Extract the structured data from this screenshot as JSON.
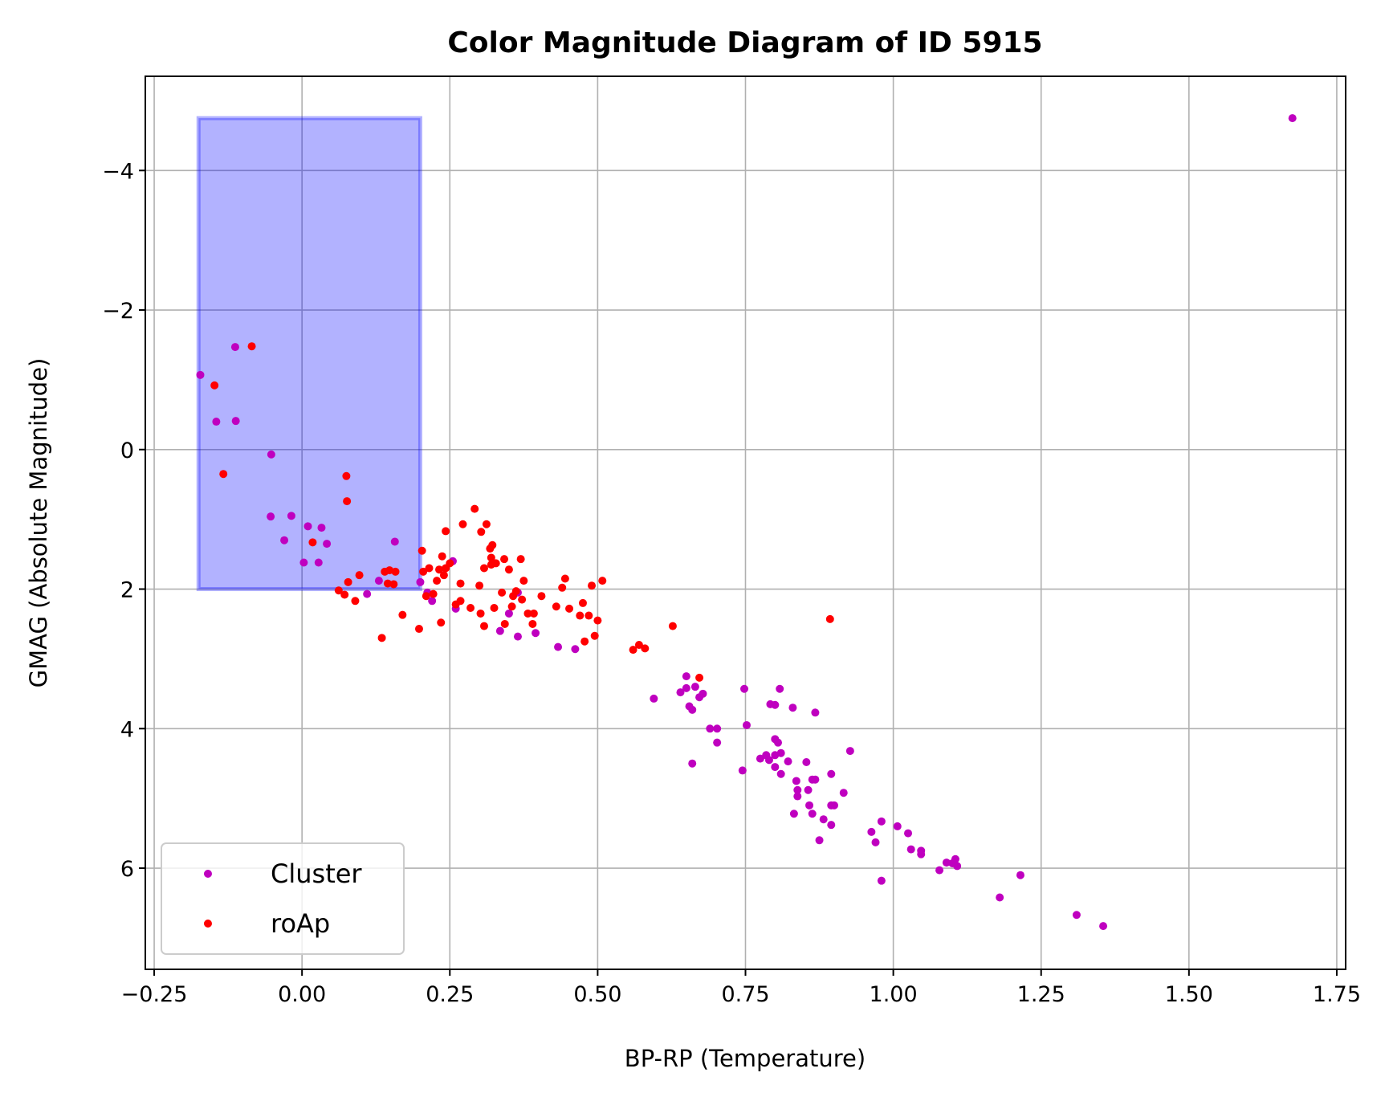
{
  "chart_data": {
    "type": "scatter",
    "title": "Color Magnitude Diagram of ID 5915",
    "xlabel": "BP-RP (Temperature)",
    "ylabel": "GMAG (Absolute Magnitude)",
    "xlim": [
      -0.265,
      1.765
    ],
    "ylim": [
      7.45,
      -5.35
    ],
    "y_inverted": true,
    "grid": true,
    "legend_position": "lower-left",
    "x_ticks": [
      -0.25,
      0.0,
      0.25,
      0.5,
      0.75,
      1.0,
      1.25,
      1.5,
      1.75
    ],
    "x_tick_labels": [
      "−0.25",
      "0.00",
      "0.25",
      "0.50",
      "0.75",
      "1.00",
      "1.25",
      "1.50",
      "1.75"
    ],
    "y_ticks": [
      -4,
      -2,
      0,
      2,
      4,
      6
    ],
    "y_tick_labels": [
      "−4",
      "−2",
      "0",
      "2",
      "4",
      "6"
    ],
    "highlight_region": {
      "x": [
        -0.175,
        0.2
      ],
      "y": [
        -4.75,
        2.0
      ],
      "color": "#0000ff",
      "opacity": 0.3
    },
    "series": [
      {
        "name": "Cluster",
        "color": "#bf00bf",
        "points": [
          [
            -0.172,
            -1.07
          ],
          [
            -0.145,
            -0.4
          ],
          [
            -0.113,
            -1.47
          ],
          [
            -0.112,
            -0.41
          ],
          [
            -0.052,
            0.07
          ],
          [
            -0.053,
            0.96
          ],
          [
            -0.018,
            0.95
          ],
          [
            -0.03,
            1.3
          ],
          [
            0.003,
            1.62
          ],
          [
            0.01,
            1.1
          ],
          [
            0.028,
            1.62
          ],
          [
            0.033,
            1.12
          ],
          [
            0.042,
            1.35
          ],
          [
            0.11,
            2.07
          ],
          [
            0.13,
            1.88
          ],
          [
            0.157,
            1.32
          ],
          [
            0.2,
            1.9
          ],
          [
            0.212,
            2.05
          ],
          [
            0.22,
            2.17
          ],
          [
            0.255,
            1.6
          ],
          [
            0.26,
            2.28
          ],
          [
            0.335,
            2.6
          ],
          [
            0.35,
            2.35
          ],
          [
            0.365,
            2.68
          ],
          [
            0.365,
            2.05
          ],
          [
            0.395,
            2.63
          ],
          [
            0.433,
            2.83
          ],
          [
            0.462,
            2.86
          ],
          [
            0.595,
            3.57
          ],
          [
            0.64,
            3.48
          ],
          [
            0.65,
            3.25
          ],
          [
            0.65,
            3.42
          ],
          [
            0.655,
            3.68
          ],
          [
            0.66,
            3.73
          ],
          [
            0.665,
            3.4
          ],
          [
            0.672,
            3.55
          ],
          [
            0.66,
            4.5
          ],
          [
            0.678,
            3.5
          ],
          [
            0.69,
            4.0
          ],
          [
            0.702,
            4.2
          ],
          [
            0.702,
            4.0
          ],
          [
            0.748,
            3.43
          ],
          [
            0.752,
            3.95
          ],
          [
            0.745,
            4.6
          ],
          [
            0.775,
            4.43
          ],
          [
            0.785,
            4.38
          ],
          [
            0.79,
            4.45
          ],
          [
            0.792,
            3.65
          ],
          [
            0.8,
            3.66
          ],
          [
            0.8,
            4.15
          ],
          [
            0.8,
            4.38
          ],
          [
            0.8,
            4.55
          ],
          [
            0.805,
            4.2
          ],
          [
            0.808,
            3.43
          ],
          [
            0.81,
            4.35
          ],
          [
            0.81,
            4.65
          ],
          [
            0.822,
            4.47
          ],
          [
            0.83,
            3.7
          ],
          [
            0.832,
            5.22
          ],
          [
            0.836,
            4.75
          ],
          [
            0.838,
            4.97
          ],
          [
            0.838,
            4.88
          ],
          [
            0.853,
            4.48
          ],
          [
            0.856,
            4.88
          ],
          [
            0.858,
            5.1
          ],
          [
            0.863,
            5.22
          ],
          [
            0.863,
            4.73
          ],
          [
            0.868,
            4.73
          ],
          [
            0.868,
            3.77
          ],
          [
            0.875,
            5.6
          ],
          [
            0.882,
            5.3
          ],
          [
            0.895,
            5.1
          ],
          [
            0.895,
            4.65
          ],
          [
            0.895,
            5.38
          ],
          [
            0.9,
            5.1
          ],
          [
            0.916,
            4.92
          ],
          [
            0.927,
            4.32
          ],
          [
            0.963,
            5.48
          ],
          [
            0.97,
            5.63
          ],
          [
            0.98,
            6.18
          ],
          [
            0.98,
            5.33
          ],
          [
            1.007,
            5.4
          ],
          [
            1.025,
            5.5
          ],
          [
            1.03,
            5.73
          ],
          [
            1.047,
            5.8
          ],
          [
            1.047,
            5.75
          ],
          [
            1.078,
            6.03
          ],
          [
            1.09,
            5.92
          ],
          [
            1.1,
            5.93
          ],
          [
            1.105,
            5.87
          ],
          [
            1.108,
            5.97
          ],
          [
            1.18,
            6.42
          ],
          [
            1.215,
            6.1
          ],
          [
            1.31,
            6.67
          ],
          [
            1.355,
            6.83
          ],
          [
            1.675,
            -4.75
          ]
        ]
      },
      {
        "name": "roAp",
        "color": "#ff0000",
        "points": [
          [
            -0.148,
            -0.92
          ],
          [
            -0.133,
            0.35
          ],
          [
            -0.085,
            -1.48
          ],
          [
            0.018,
            1.33
          ],
          [
            0.062,
            2.02
          ],
          [
            0.072,
            2.08
          ],
          [
            0.075,
            0.38
          ],
          [
            0.076,
            0.74
          ],
          [
            0.078,
            1.9
          ],
          [
            0.09,
            2.17
          ],
          [
            0.097,
            1.8
          ],
          [
            0.135,
            2.7
          ],
          [
            0.14,
            1.75
          ],
          [
            0.145,
            1.92
          ],
          [
            0.148,
            1.73
          ],
          [
            0.155,
            1.93
          ],
          [
            0.158,
            1.75
          ],
          [
            0.17,
            2.37
          ],
          [
            0.198,
            2.57
          ],
          [
            0.203,
            1.45
          ],
          [
            0.205,
            1.75
          ],
          [
            0.21,
            2.1
          ],
          [
            0.215,
            1.7
          ],
          [
            0.222,
            2.07
          ],
          [
            0.228,
            1.88
          ],
          [
            0.232,
            1.72
          ],
          [
            0.235,
            2.48
          ],
          [
            0.237,
            1.53
          ],
          [
            0.24,
            1.8
          ],
          [
            0.243,
            1.7
          ],
          [
            0.243,
            1.17
          ],
          [
            0.25,
            1.63
          ],
          [
            0.26,
            2.22
          ],
          [
            0.268,
            1.92
          ],
          [
            0.268,
            2.17
          ],
          [
            0.272,
            1.07
          ],
          [
            0.285,
            2.27
          ],
          [
            0.292,
            0.85
          ],
          [
            0.3,
            1.95
          ],
          [
            0.302,
            2.35
          ],
          [
            0.303,
            1.18
          ],
          [
            0.308,
            2.53
          ],
          [
            0.308,
            1.7
          ],
          [
            0.312,
            1.07
          ],
          [
            0.318,
            1.42
          ],
          [
            0.32,
            1.55
          ],
          [
            0.32,
            1.65
          ],
          [
            0.322,
            1.37
          ],
          [
            0.325,
            2.27
          ],
          [
            0.328,
            1.63
          ],
          [
            0.338,
            2.05
          ],
          [
            0.342,
            1.57
          ],
          [
            0.343,
            2.5
          ],
          [
            0.35,
            1.72
          ],
          [
            0.355,
            2.25
          ],
          [
            0.357,
            2.1
          ],
          [
            0.362,
            2.03
          ],
          [
            0.37,
            1.57
          ],
          [
            0.372,
            2.15
          ],
          [
            0.375,
            1.88
          ],
          [
            0.382,
            2.35
          ],
          [
            0.39,
            2.5
          ],
          [
            0.392,
            2.35
          ],
          [
            0.405,
            2.1
          ],
          [
            0.43,
            2.25
          ],
          [
            0.44,
            1.98
          ],
          [
            0.445,
            1.85
          ],
          [
            0.452,
            2.28
          ],
          [
            0.47,
            2.38
          ],
          [
            0.475,
            2.2
          ],
          [
            0.478,
            2.75
          ],
          [
            0.485,
            2.38
          ],
          [
            0.49,
            1.95
          ],
          [
            0.495,
            2.67
          ],
          [
            0.5,
            2.45
          ],
          [
            0.508,
            1.88
          ],
          [
            0.56,
            2.87
          ],
          [
            0.57,
            2.8
          ],
          [
            0.58,
            2.85
          ],
          [
            0.627,
            2.53
          ],
          [
            0.672,
            3.27
          ],
          [
            0.893,
            2.43
          ]
        ]
      }
    ]
  }
}
